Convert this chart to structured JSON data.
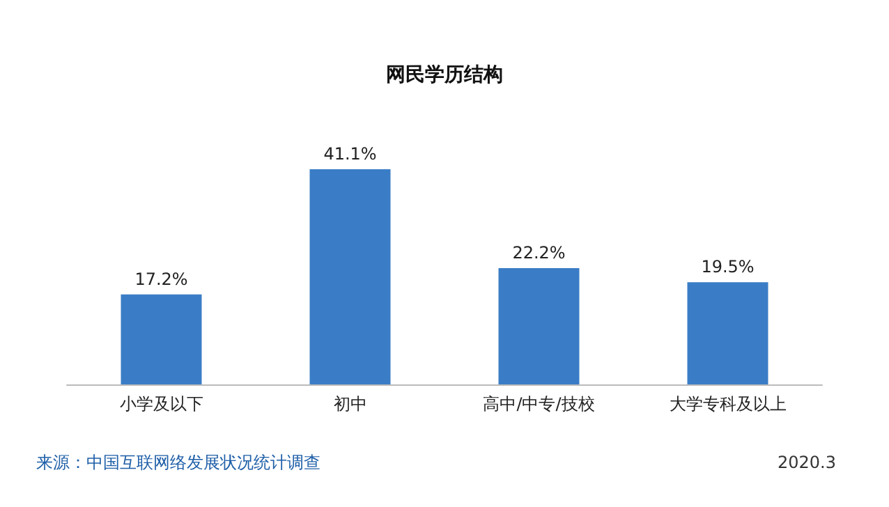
{
  "chart_data": {
    "type": "bar",
    "title": "网民学历结构",
    "categories": [
      "小学及以下",
      "初中",
      "高中/中专/技校",
      "大学专科及以上"
    ],
    "values": [
      17.2,
      41.1,
      22.2,
      19.5
    ],
    "value_labels": [
      "17.2%",
      "41.1%",
      "22.2%",
      "19.5%"
    ],
    "color": "#3a7dc6",
    "annotations": [
      "来源：中国互联网络发展状况统计调查",
      "2020.3"
    ]
  }
}
